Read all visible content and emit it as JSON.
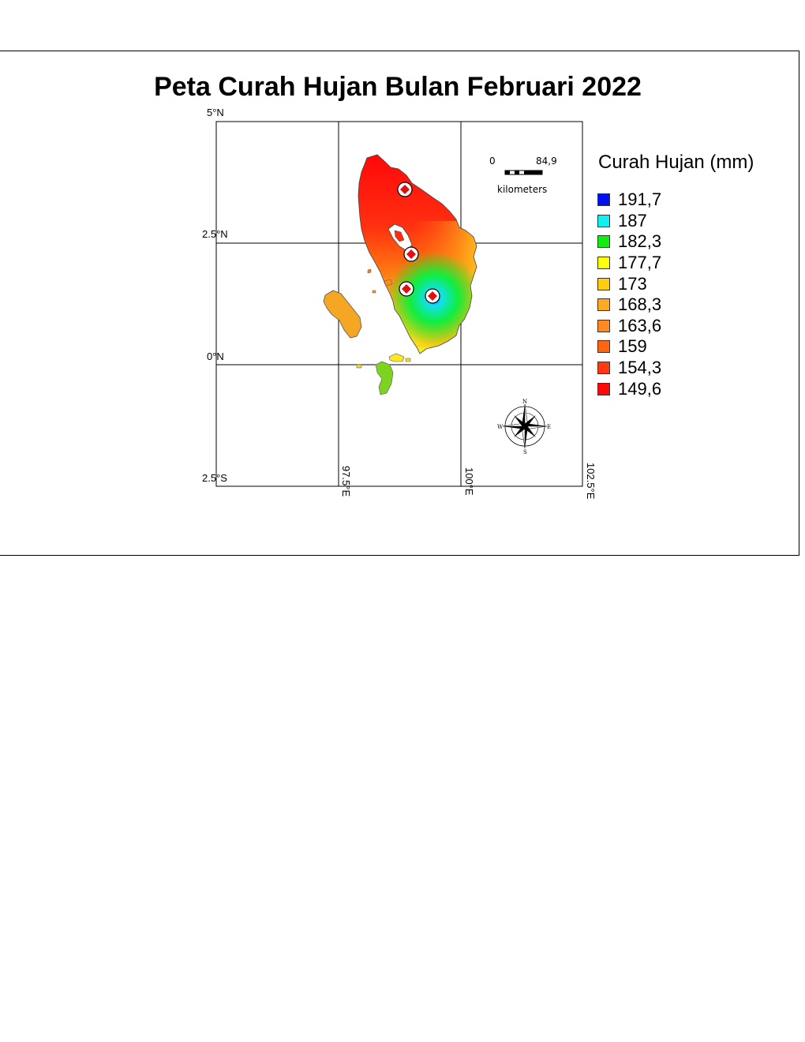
{
  "map": {
    "title": "Peta Curah Hujan Bulan Februari 2022",
    "grid_labels": {
      "lat_5n": "5°N",
      "lat_2_5n": "2.5°N",
      "lat_0n": "0°N",
      "lat_2_5s": "2.5°S",
      "lon_97_5e": "97.5°E",
      "lon_100e": "100°E",
      "lon_102_5e": "102.5°E"
    },
    "scale_bar": {
      "start_label": "0",
      "end_label": "84,9",
      "unit_label": "kilometers"
    },
    "north_arrow": {
      "icon": "compass-rose-icon",
      "n": "N",
      "e": "E",
      "s": "S",
      "w": "W"
    },
    "stations_count": 4,
    "legend": {
      "title": "Curah Hujan (mm)",
      "items": [
        {
          "label": "191,7",
          "color": "#0010ee"
        },
        {
          "label": "187",
          "color": "#10f0f0"
        },
        {
          "label": "182,3",
          "color": "#10ee10"
        },
        {
          "label": "177,7",
          "color": "#ffff10"
        },
        {
          "label": "173",
          "color": "#ffcc10"
        },
        {
          "label": "168,3",
          "color": "#ffaa20"
        },
        {
          "label": "163,6",
          "color": "#ff8a20"
        },
        {
          "label": "159",
          "color": "#ff6610"
        },
        {
          "label": "154,3",
          "color": "#ff3a10"
        },
        {
          "label": "149,6",
          "color": "#ff0a0a"
        }
      ]
    }
  }
}
